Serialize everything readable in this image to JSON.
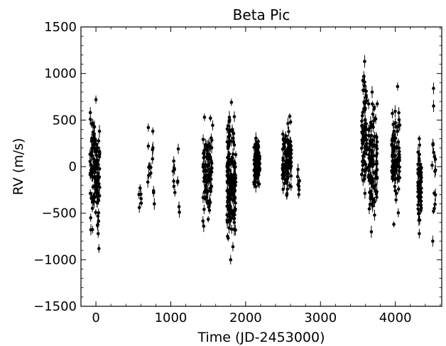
{
  "chart_data": {
    "type": "scatter",
    "title": "Beta Pic",
    "xlabel": "Time (JD-2453000)",
    "ylabel": "RV (m/s)",
    "xlim": [
      -200,
      4620
    ],
    "ylim": [
      -1500,
      1500
    ],
    "x_ticks": [
      0,
      1000,
      2000,
      3000,
      4000
    ],
    "x_tick_labels": [
      "0",
      "1000",
      "2000",
      "3000",
      "4000"
    ],
    "y_ticks": [
      -1500,
      -1000,
      -500,
      0,
      500,
      1000,
      1500
    ],
    "y_tick_labels": [
      "−1500",
      "−1000",
      "−500",
      "0",
      "500",
      "1000",
      "1500"
    ],
    "grid": false,
    "error_bars": true,
    "marker_color": "#000000",
    "series": [
      {
        "clusters": [
          {
            "x_range": [
              -80,
              50
            ],
            "y_range": [
              -880,
              730
            ],
            "n": 130,
            "highlights": [
              [
                -75,
                580
              ],
              [
                -60,
                460
              ],
              [
                0,
                720
              ],
              [
                -70,
                -550
              ],
              [
                30,
                -720
              ],
              [
                40,
                -880
              ]
            ]
          },
          {
            "x_range": [
              570,
              610
            ],
            "y_range": [
              -450,
              -200
            ],
            "n": 4,
            "highlights": [
              [
                580,
                -440
              ],
              [
                590,
                -230
              ]
            ]
          },
          {
            "x_range": [
              690,
              780
            ],
            "y_range": [
              -420,
              440
            ],
            "n": 10,
            "highlights": [
              [
                700,
                420
              ],
              [
                760,
                380
              ],
              [
                700,
                220
              ],
              [
                770,
                -260
              ],
              [
                780,
                -400
              ]
            ]
          },
          {
            "x_range": [
              1030,
              1120
            ],
            "y_range": [
              -500,
              200
            ],
            "n": 7,
            "highlights": [
              [
                1040,
                60
              ],
              [
                1050,
                -30
              ],
              [
                1100,
                190
              ],
              [
                1110,
                -430
              ],
              [
                1115,
                -490
              ]
            ]
          },
          {
            "x_range": [
              1430,
              1560
            ],
            "y_range": [
              -650,
              560
            ],
            "n": 90,
            "highlights": [
              [
                1450,
                530
              ],
              [
                1440,
                -640
              ],
              [
                1530,
                520
              ]
            ]
          },
          {
            "x_range": [
              1750,
              1870
            ],
            "y_range": [
              -1000,
              700
            ],
            "n": 180,
            "highlights": [
              [
                1810,
                690
              ],
              [
                1800,
                -1000
              ],
              [
                1830,
                -860
              ]
            ]
          },
          {
            "x_range": [
              2110,
              2190
            ],
            "y_range": [
              -400,
              420
            ],
            "n": 90,
            "highlights": []
          },
          {
            "x_range": [
              2490,
              2610
            ],
            "y_range": [
              -430,
              560
            ],
            "n": 110,
            "highlights": [
              [
                2590,
                540
              ]
            ]
          },
          {
            "x_range": [
              2690,
              2720
            ],
            "y_range": [
              -320,
              0
            ],
            "n": 6,
            "highlights": [
              [
                2700,
                -30
              ],
              [
                2710,
                -300
              ]
            ]
          },
          {
            "x_range": [
              3550,
              3620
            ],
            "y_range": [
              -450,
              1130
            ],
            "n": 70,
            "highlights": [
              [
                3590,
                1130
              ],
              [
                3580,
                970
              ],
              [
                3570,
                820
              ]
            ]
          },
          {
            "x_range": [
              3640,
              3760
            ],
            "y_range": [
              -720,
              820
            ],
            "n": 110,
            "highlights": [
              [
                3690,
                800
              ],
              [
                3680,
                -700
              ]
            ]
          },
          {
            "x_range": [
              3950,
              4060
            ],
            "y_range": [
              -620,
              870
            ],
            "n": 90,
            "highlights": [
              [
                4030,
                860
              ],
              [
                3980,
                -620
              ]
            ]
          },
          {
            "x_range": [
              4300,
              4350
            ],
            "y_range": [
              -730,
              320
            ],
            "n": 60,
            "highlights": [
              [
                4320,
                300
              ],
              [
                4320,
                -720
              ]
            ]
          },
          {
            "x_range": [
              4480,
              4540
            ],
            "y_range": [
              -800,
              870
            ],
            "n": 12,
            "highlights": [
              [
                4510,
                840
              ],
              [
                4510,
                -480
              ],
              [
                4500,
                -800
              ],
              [
                4520,
                -450
              ]
            ]
          }
        ]
      }
    ]
  }
}
